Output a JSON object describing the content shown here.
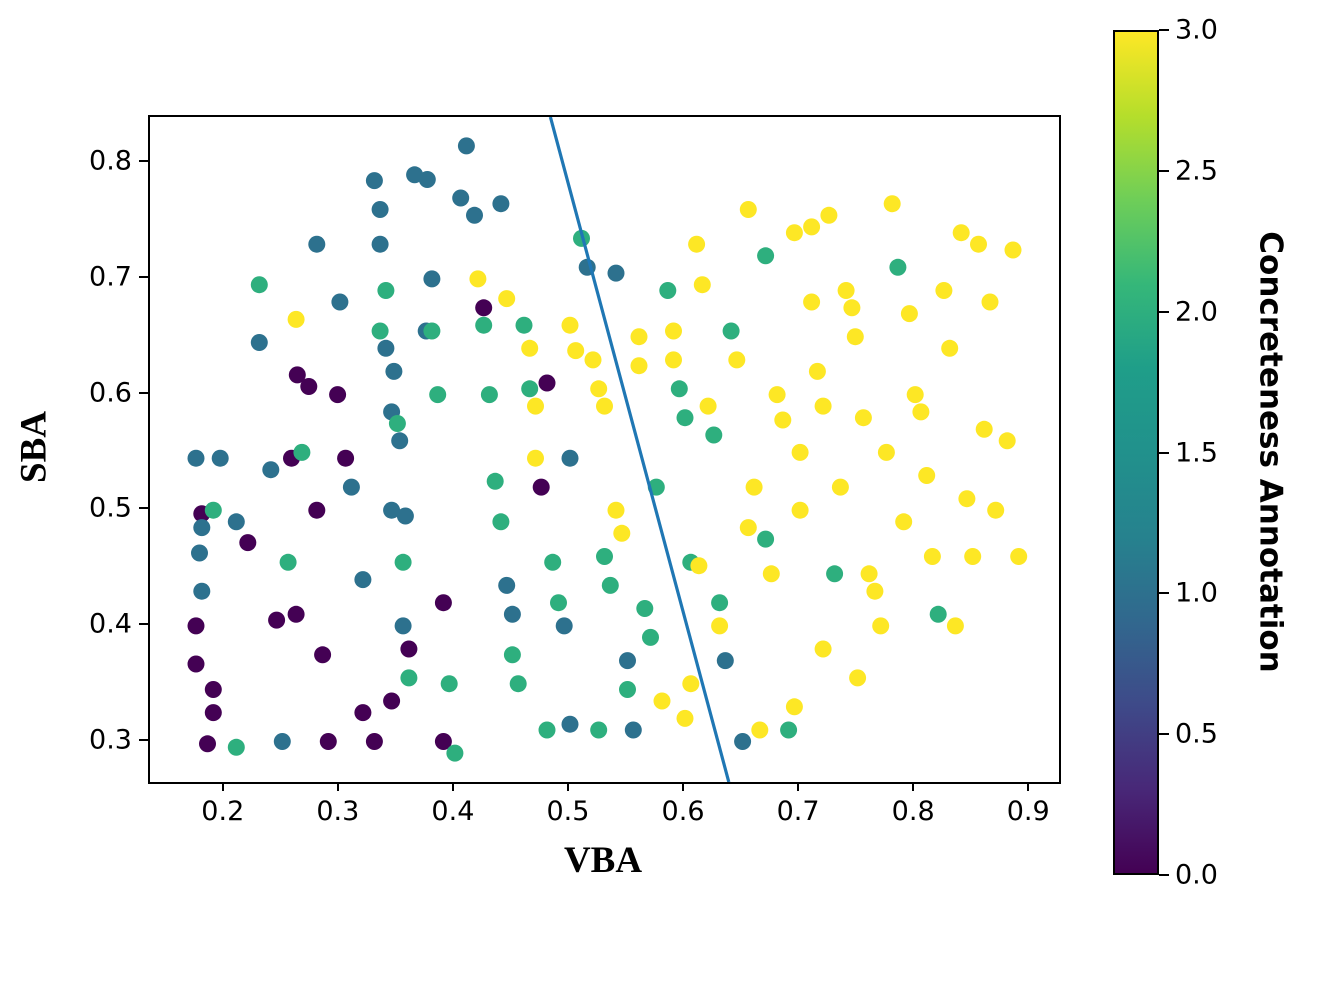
{
  "chart_data": {
    "type": "scatter",
    "title": "",
    "xlabel": "VBA",
    "ylabel": "SBA",
    "xlim": [
      0.135,
      0.925
    ],
    "ylim": [
      0.265,
      0.84
    ],
    "grid": false,
    "colormap": "viridis",
    "color_range": [
      0,
      3
    ],
    "colorbar_label": "Concreteness Annotation",
    "x_ticks": [
      {
        "v": 0.2,
        "label": "0.2"
      },
      {
        "v": 0.3,
        "label": "0.3"
      },
      {
        "v": 0.4,
        "label": "0.4"
      },
      {
        "v": 0.5,
        "label": "0.5"
      },
      {
        "v": 0.6,
        "label": "0.6"
      },
      {
        "v": 0.7,
        "label": "0.7"
      },
      {
        "v": 0.8,
        "label": "0.8"
      },
      {
        "v": 0.9,
        "label": "0.9"
      }
    ],
    "y_ticks": [
      {
        "v": 0.3,
        "label": "0.3"
      },
      {
        "v": 0.4,
        "label": "0.4"
      },
      {
        "v": 0.5,
        "label": "0.5"
      },
      {
        "v": 0.6,
        "label": "0.6"
      },
      {
        "v": 0.7,
        "label": "0.7"
      },
      {
        "v": 0.8,
        "label": "0.8"
      }
    ],
    "colorbar_ticks": [
      {
        "v": 0.0,
        "label": "0.0"
      },
      {
        "v": 0.5,
        "label": "0.5"
      },
      {
        "v": 1.0,
        "label": "1.0"
      },
      {
        "v": 1.5,
        "label": "1.5"
      },
      {
        "v": 2.0,
        "label": "2.0"
      },
      {
        "v": 2.5,
        "label": "2.5"
      },
      {
        "v": 3.0,
        "label": "3.0"
      }
    ],
    "line": {
      "color": "#1f77b4",
      "x": [
        0.483,
        0.638
      ],
      "y": [
        0.84,
        0.265
      ]
    },
    "points": [
      [
        0.175,
        0.4,
        0
      ],
      [
        0.175,
        0.367,
        0
      ],
      [
        0.19,
        0.345,
        0
      ],
      [
        0.19,
        0.325,
        0
      ],
      [
        0.185,
        0.298,
        0
      ],
      [
        0.18,
        0.497,
        0
      ],
      [
        0.22,
        0.472,
        0
      ],
      [
        0.245,
        0.405,
        0
      ],
      [
        0.262,
        0.41,
        0
      ],
      [
        0.258,
        0.545,
        0
      ],
      [
        0.263,
        0.617,
        0
      ],
      [
        0.273,
        0.607,
        0
      ],
      [
        0.28,
        0.5,
        0
      ],
      [
        0.285,
        0.375,
        0
      ],
      [
        0.29,
        0.3,
        0
      ],
      [
        0.298,
        0.6,
        0
      ],
      [
        0.305,
        0.545,
        0
      ],
      [
        0.32,
        0.325,
        0
      ],
      [
        0.33,
        0.3,
        0
      ],
      [
        0.345,
        0.335,
        0
      ],
      [
        0.36,
        0.38,
        0
      ],
      [
        0.39,
        0.42,
        0
      ],
      [
        0.39,
        0.3,
        0
      ],
      [
        0.425,
        0.675,
        0
      ],
      [
        0.475,
        0.52,
        0
      ],
      [
        0.48,
        0.61,
        0
      ],
      [
        0.175,
        0.545,
        1
      ],
      [
        0.196,
        0.545,
        1
      ],
      [
        0.18,
        0.485,
        1
      ],
      [
        0.178,
        0.463,
        1
      ],
      [
        0.18,
        0.43,
        1
      ],
      [
        0.21,
        0.49,
        1
      ],
      [
        0.23,
        0.645,
        1
      ],
      [
        0.24,
        0.535,
        1
      ],
      [
        0.25,
        0.3,
        1
      ],
      [
        0.28,
        0.73,
        1
      ],
      [
        0.3,
        0.68,
        1
      ],
      [
        0.31,
        0.52,
        1
      ],
      [
        0.32,
        0.44,
        1
      ],
      [
        0.33,
        0.785,
        1
      ],
      [
        0.335,
        0.76,
        1
      ],
      [
        0.335,
        0.73,
        1
      ],
      [
        0.34,
        0.64,
        1
      ],
      [
        0.347,
        0.62,
        1
      ],
      [
        0.345,
        0.585,
        1
      ],
      [
        0.352,
        0.56,
        1
      ],
      [
        0.345,
        0.5,
        1
      ],
      [
        0.357,
        0.495,
        1
      ],
      [
        0.355,
        0.4,
        1
      ],
      [
        0.365,
        0.79,
        1
      ],
      [
        0.376,
        0.786,
        1
      ],
      [
        0.375,
        0.655,
        1
      ],
      [
        0.38,
        0.7,
        1
      ],
      [
        0.405,
        0.77,
        1
      ],
      [
        0.41,
        0.815,
        1
      ],
      [
        0.417,
        0.755,
        1
      ],
      [
        0.44,
        0.765,
        1
      ],
      [
        0.445,
        0.435,
        1
      ],
      [
        0.45,
        0.41,
        1
      ],
      [
        0.495,
        0.4,
        1
      ],
      [
        0.5,
        0.315,
        1
      ],
      [
        0.5,
        0.545,
        1
      ],
      [
        0.515,
        0.71,
        1
      ],
      [
        0.54,
        0.705,
        1
      ],
      [
        0.55,
        0.37,
        1
      ],
      [
        0.555,
        0.31,
        1
      ],
      [
        0.635,
        0.37,
        1
      ],
      [
        0.65,
        0.3,
        1
      ],
      [
        0.19,
        0.5,
        2
      ],
      [
        0.21,
        0.295,
        2
      ],
      [
        0.23,
        0.695,
        2
      ],
      [
        0.255,
        0.455,
        2
      ],
      [
        0.267,
        0.55,
        2
      ],
      [
        0.335,
        0.655,
        2
      ],
      [
        0.34,
        0.69,
        2
      ],
      [
        0.35,
        0.575,
        2
      ],
      [
        0.355,
        0.455,
        2
      ],
      [
        0.36,
        0.355,
        2
      ],
      [
        0.38,
        0.655,
        2
      ],
      [
        0.385,
        0.6,
        2
      ],
      [
        0.395,
        0.35,
        2
      ],
      [
        0.4,
        0.29,
        2
      ],
      [
        0.425,
        0.66,
        2
      ],
      [
        0.43,
        0.6,
        2
      ],
      [
        0.435,
        0.525,
        2
      ],
      [
        0.44,
        0.49,
        2
      ],
      [
        0.45,
        0.375,
        2
      ],
      [
        0.455,
        0.35,
        2
      ],
      [
        0.46,
        0.66,
        2
      ],
      [
        0.465,
        0.605,
        2
      ],
      [
        0.48,
        0.31,
        2
      ],
      [
        0.485,
        0.455,
        2
      ],
      [
        0.49,
        0.42,
        2
      ],
      [
        0.51,
        0.735,
        2
      ],
      [
        0.525,
        0.31,
        2
      ],
      [
        0.53,
        0.46,
        2
      ],
      [
        0.535,
        0.435,
        2
      ],
      [
        0.55,
        0.345,
        2
      ],
      [
        0.565,
        0.415,
        2
      ],
      [
        0.57,
        0.39,
        2
      ],
      [
        0.575,
        0.52,
        2
      ],
      [
        0.585,
        0.69,
        2
      ],
      [
        0.595,
        0.605,
        2
      ],
      [
        0.6,
        0.58,
        2
      ],
      [
        0.605,
        0.455,
        2
      ],
      [
        0.625,
        0.565,
        2
      ],
      [
        0.63,
        0.42,
        2
      ],
      [
        0.64,
        0.655,
        2
      ],
      [
        0.67,
        0.72,
        2
      ],
      [
        0.67,
        0.475,
        2
      ],
      [
        0.69,
        0.31,
        2
      ],
      [
        0.73,
        0.445,
        2
      ],
      [
        0.785,
        0.71,
        2
      ],
      [
        0.82,
        0.41,
        2
      ],
      [
        0.262,
        0.665,
        3
      ],
      [
        0.42,
        0.7,
        3
      ],
      [
        0.445,
        0.683,
        3
      ],
      [
        0.465,
        0.64,
        3
      ],
      [
        0.47,
        0.59,
        3
      ],
      [
        0.47,
        0.545,
        3
      ],
      [
        0.5,
        0.66,
        3
      ],
      [
        0.505,
        0.638,
        3
      ],
      [
        0.52,
        0.63,
        3
      ],
      [
        0.525,
        0.605,
        3
      ],
      [
        0.53,
        0.59,
        3
      ],
      [
        0.54,
        0.5,
        3
      ],
      [
        0.545,
        0.48,
        3
      ],
      [
        0.56,
        0.65,
        3
      ],
      [
        0.56,
        0.625,
        3
      ],
      [
        0.58,
        0.335,
        3
      ],
      [
        0.59,
        0.655,
        3
      ],
      [
        0.59,
        0.63,
        3
      ],
      [
        0.6,
        0.32,
        3
      ],
      [
        0.605,
        0.35,
        3
      ],
      [
        0.61,
        0.73,
        3
      ],
      [
        0.612,
        0.452,
        3
      ],
      [
        0.615,
        0.695,
        3
      ],
      [
        0.62,
        0.59,
        3
      ],
      [
        0.63,
        0.4,
        3
      ],
      [
        0.645,
        0.63,
        3
      ],
      [
        0.655,
        0.76,
        3
      ],
      [
        0.655,
        0.485,
        3
      ],
      [
        0.66,
        0.52,
        3
      ],
      [
        0.665,
        0.31,
        3
      ],
      [
        0.675,
        0.445,
        3
      ],
      [
        0.68,
        0.6,
        3
      ],
      [
        0.685,
        0.578,
        3
      ],
      [
        0.695,
        0.74,
        3
      ],
      [
        0.695,
        0.33,
        3
      ],
      [
        0.7,
        0.55,
        3
      ],
      [
        0.7,
        0.5,
        3
      ],
      [
        0.71,
        0.745,
        3
      ],
      [
        0.71,
        0.68,
        3
      ],
      [
        0.715,
        0.62,
        3
      ],
      [
        0.72,
        0.59,
        3
      ],
      [
        0.72,
        0.38,
        3
      ],
      [
        0.725,
        0.755,
        3
      ],
      [
        0.735,
        0.52,
        3
      ],
      [
        0.74,
        0.69,
        3
      ],
      [
        0.745,
        0.675,
        3
      ],
      [
        0.748,
        0.65,
        3
      ],
      [
        0.75,
        0.355,
        3
      ],
      [
        0.755,
        0.58,
        3
      ],
      [
        0.76,
        0.445,
        3
      ],
      [
        0.765,
        0.43,
        3
      ],
      [
        0.77,
        0.4,
        3
      ],
      [
        0.775,
        0.55,
        3
      ],
      [
        0.78,
        0.765,
        3
      ],
      [
        0.79,
        0.49,
        3
      ],
      [
        0.795,
        0.67,
        3
      ],
      [
        0.8,
        0.6,
        3
      ],
      [
        0.805,
        0.585,
        3
      ],
      [
        0.81,
        0.53,
        3
      ],
      [
        0.815,
        0.46,
        3
      ],
      [
        0.825,
        0.69,
        3
      ],
      [
        0.83,
        0.64,
        3
      ],
      [
        0.835,
        0.4,
        3
      ],
      [
        0.84,
        0.74,
        3
      ],
      [
        0.845,
        0.51,
        3
      ],
      [
        0.85,
        0.46,
        3
      ],
      [
        0.855,
        0.73,
        3
      ],
      [
        0.86,
        0.57,
        3
      ],
      [
        0.865,
        0.68,
        3
      ],
      [
        0.87,
        0.5,
        3
      ],
      [
        0.88,
        0.56,
        3
      ],
      [
        0.885,
        0.725,
        3
      ],
      [
        0.89,
        0.46,
        3
      ]
    ]
  }
}
